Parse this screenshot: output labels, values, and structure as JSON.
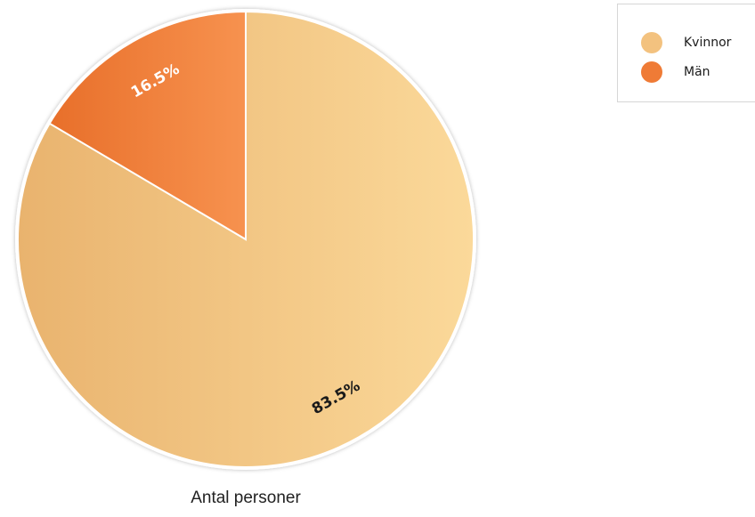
{
  "chart_data": {
    "type": "pie",
    "categories": [
      "Kvinnor",
      "Män"
    ],
    "values": [
      83.5,
      16.5
    ],
    "value_labels": [
      "83.5%",
      "16.5%"
    ],
    "colors": [
      "#f3c27f",
      "#ef7b36"
    ],
    "label_colors": [
      "#1a1a1a",
      "#ffffff"
    ],
    "xlabel": "Antal personer",
    "legend_position": "top-right"
  }
}
